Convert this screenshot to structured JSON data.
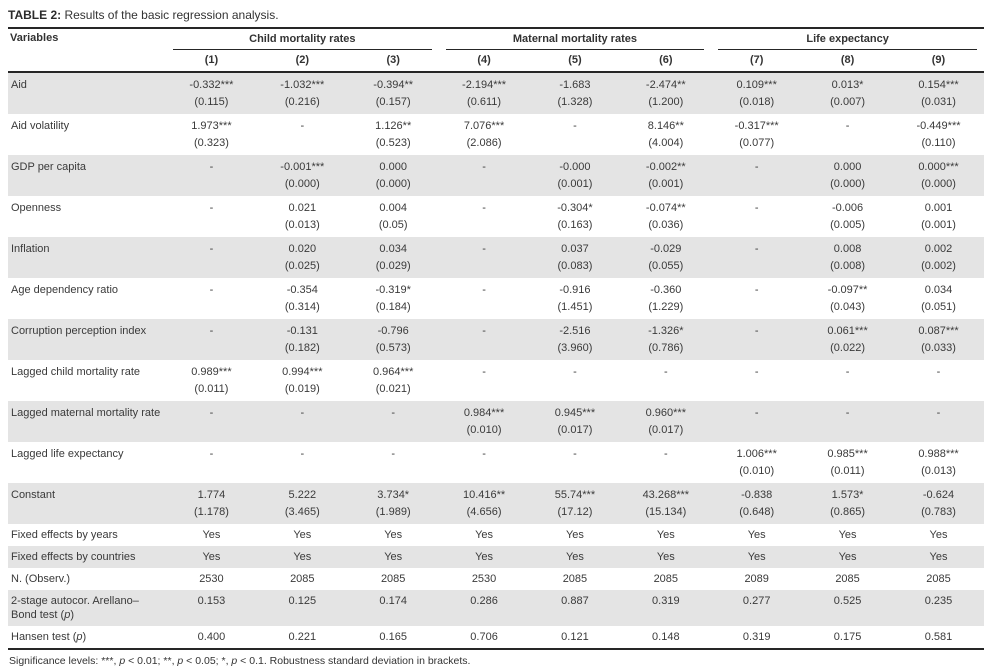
{
  "title": {
    "label": "TABLE 2:",
    "text": " Results of the basic regression analysis."
  },
  "table": {
    "variables_header": "Variables",
    "groups": [
      {
        "label": "Child mortality rates",
        "cols": [
          "(1)",
          "(2)",
          "(3)"
        ]
      },
      {
        "label": "Maternal mortality rates",
        "cols": [
          "(4)",
          "(5)",
          "(6)"
        ]
      },
      {
        "label": "Life expectancy",
        "cols": [
          "(7)",
          "(8)",
          "(9)"
        ]
      }
    ],
    "rows": [
      {
        "label": "Aid",
        "values": [
          "-0.332***",
          "-1.032***",
          "-0.394**",
          "-2.194***",
          "-1.683",
          "-2.474**",
          "0.109***",
          "0.013*",
          "0.154***"
        ],
        "se": [
          "(0.115)",
          "(0.216)",
          "(0.157)",
          "(0.611)",
          "(1.328)",
          "(1.200)",
          "(0.018)",
          "(0.007)",
          "(0.031)"
        ]
      },
      {
        "label": "Aid volatility",
        "values": [
          "1.973***",
          "-",
          "1.126**",
          "7.076***",
          "-",
          "8.146**",
          "-0.317***",
          "-",
          "-0.449***"
        ],
        "se": [
          "(0.323)",
          "",
          "(0.523)",
          "(2.086)",
          "",
          "(4.004)",
          "(0.077)",
          "",
          "(0.110)"
        ]
      },
      {
        "label": "GDP per capita",
        "values": [
          "-",
          "-0.001***",
          "0.000",
          "-",
          "-0.000",
          "-0.002**",
          "-",
          "0.000",
          "0.000***"
        ],
        "se": [
          "",
          "(0.000)",
          "(0.000)",
          "",
          "(0.001)",
          "(0.001)",
          "",
          "(0.000)",
          "(0.000)"
        ]
      },
      {
        "label": "Openness",
        "values": [
          "-",
          "0.021",
          "0.004",
          "-",
          "-0.304*",
          "-0.074**",
          "-",
          "-0.006",
          "0.001"
        ],
        "se": [
          "",
          "(0.013)",
          "(0.05)",
          "",
          "(0.163)",
          "(0.036)",
          "",
          "(0.005)",
          "(0.001)"
        ]
      },
      {
        "label": "Inflation",
        "values": [
          "-",
          "0.020",
          "0.034",
          "-",
          "0.037",
          "-0.029",
          "-",
          "0.008",
          "0.002"
        ],
        "se": [
          "",
          "(0.025)",
          "(0.029)",
          "",
          "(0.083)",
          "(0.055)",
          "",
          "(0.008)",
          "(0.002)"
        ]
      },
      {
        "label": "Age dependency ratio",
        "values": [
          "-",
          "-0.354",
          "-0.319*",
          "-",
          "-0.916",
          "-0.360",
          "-",
          "-0.097**",
          "0.034"
        ],
        "se": [
          "",
          "(0.314)",
          "(0.184)",
          "",
          "(1.451)",
          "(1.229)",
          "",
          "(0.043)",
          "(0.051)"
        ]
      },
      {
        "label": "Corruption perception index",
        "values": [
          "-",
          "-0.131",
          "-0.796",
          "-",
          "-2.516",
          "-1.326*",
          "-",
          "0.061***",
          "0.087***"
        ],
        "se": [
          "",
          "(0.182)",
          "(0.573)",
          "",
          "(3.960)",
          "(0.786)",
          "",
          "(0.022)",
          "(0.033)"
        ]
      },
      {
        "label": "Lagged child mortality rate",
        "values": [
          "0.989***",
          "0.994***",
          "0.964***",
          "-",
          "-",
          "-",
          "-",
          "-",
          "-"
        ],
        "se": [
          "(0.011)",
          "(0.019)",
          "(0.021)",
          "",
          "",
          "",
          "",
          "",
          ""
        ]
      },
      {
        "label": "Lagged maternal mortality rate",
        "values": [
          "-",
          "-",
          "-",
          "0.984***",
          "0.945***",
          "0.960***",
          "-",
          "-",
          "-"
        ],
        "se": [
          "",
          "",
          "",
          "(0.010)",
          "(0.017)",
          "(0.017)",
          "",
          "",
          ""
        ]
      },
      {
        "label": "Lagged life expectancy",
        "values": [
          "-",
          "-",
          "-",
          "-",
          "-",
          "-",
          "1.006***",
          "0.985***",
          "0.988***"
        ],
        "se": [
          "",
          "",
          "",
          "",
          "",
          "",
          "(0.010)",
          "(0.011)",
          "(0.013)"
        ]
      },
      {
        "label": "Constant",
        "values": [
          "1.774",
          "5.222",
          "3.734*",
          "10.416**",
          "55.74***",
          "43.268***",
          "-0.838",
          "1.573*",
          "-0.624"
        ],
        "se": [
          "(1.178)",
          "(3.465)",
          "(1.989)",
          "(4.656)",
          "(17.12)",
          "(15.134)",
          "(0.648)",
          "(0.865)",
          "(0.783)"
        ]
      },
      {
        "label": "Fixed effects by years",
        "values": [
          "Yes",
          "Yes",
          "Yes",
          "Yes",
          "Yes",
          "Yes",
          "Yes",
          "Yes",
          "Yes"
        ]
      },
      {
        "label": "Fixed effects by countries",
        "values": [
          "Yes",
          "Yes",
          "Yes",
          "Yes",
          "Yes",
          "Yes",
          "Yes",
          "Yes",
          "Yes"
        ]
      },
      {
        "label": "N. (Observ.)",
        "values": [
          "2530",
          "2085",
          "2085",
          "2530",
          "2085",
          "2085",
          "2089",
          "2085",
          "2085"
        ]
      },
      {
        "label": "2-stage autocor. Arellano–Bond test (p)",
        "values": [
          "0.153",
          "0.125",
          "0.174",
          "0.286",
          "0.887",
          "0.319",
          "0.277",
          "0.525",
          "0.235"
        ]
      },
      {
        "label": "Hansen test (p)",
        "values": [
          "0.400",
          "0.221",
          "0.165",
          "0.706",
          "0.121",
          "0.148",
          "0.319",
          "0.175",
          "0.581"
        ]
      }
    ]
  },
  "footnote": {
    "parts": [
      {
        "t": "Significance levels: ***, ",
        "i": false
      },
      {
        "t": "p",
        "i": true
      },
      {
        "t": " < 0.01; **, ",
        "i": false
      },
      {
        "t": "p",
        "i": true
      },
      {
        "t": " < 0.05; *, ",
        "i": false
      },
      {
        "t": "p",
        "i": true
      },
      {
        "t": " < 0.1. Robustness standard deviation in brackets.",
        "i": false
      }
    ]
  }
}
